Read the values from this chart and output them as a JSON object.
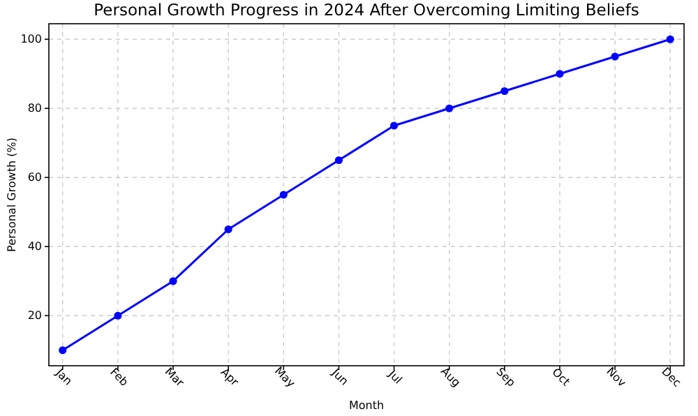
{
  "chart_data": {
    "type": "line",
    "title": "Personal Growth Progress in 2024 After Overcoming Limiting Beliefs",
    "xlabel": "Month",
    "ylabel": "Personal Growth (%)",
    "categories": [
      "Jan",
      "Feb",
      "Mar",
      "Apr",
      "May",
      "Jun",
      "Jul",
      "Aug",
      "Sep",
      "Oct",
      "Nov",
      "Dec"
    ],
    "series": [
      {
        "color": "#0000ff",
        "values": [
          10,
          20,
          30,
          45,
          55,
          65,
          75,
          80,
          85,
          90,
          95,
          100
        ]
      }
    ],
    "ylim": [
      5.5,
      104.5
    ],
    "yticks": [
      20,
      40,
      60,
      80,
      100
    ],
    "grid": true,
    "marker": "circle",
    "line_style": "solid"
  }
}
